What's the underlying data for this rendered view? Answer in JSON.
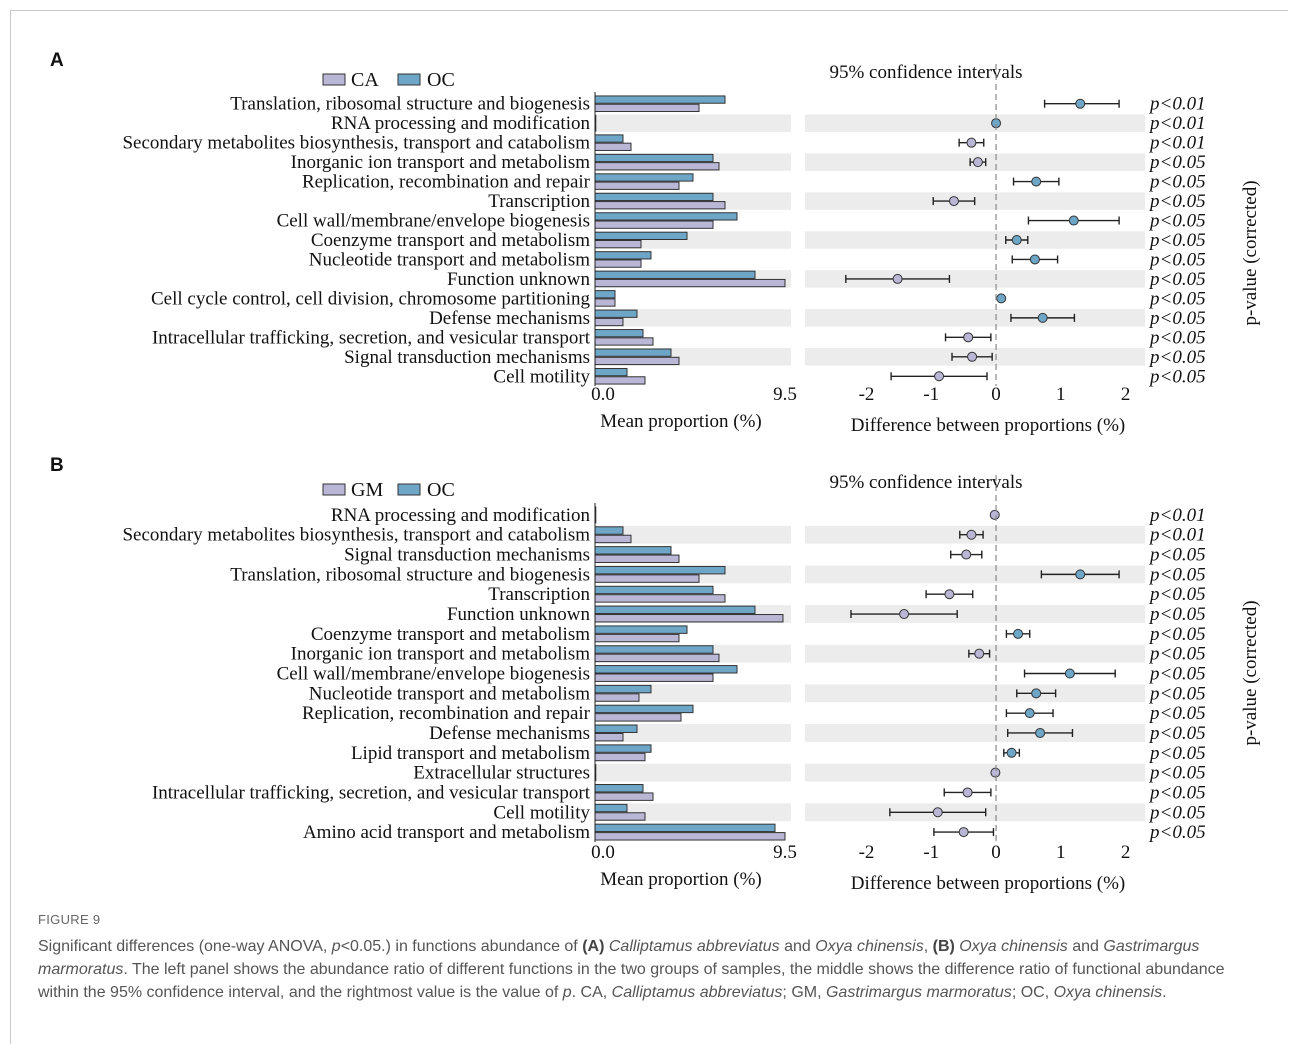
{
  "colors": {
    "series_1": "#b9b6d6",
    "series_2": "#6ea6c8",
    "stripe": "#ececec",
    "dot_positive": "#6ea6c8",
    "dot_negative": "#b9b6d6"
  },
  "chart_data": [
    {
      "panel_label": "A",
      "type": "bar",
      "legend": [
        "CA",
        "OC"
      ],
      "ci_title": "95% confidence intervals",
      "left_xlabel": "Mean proportion (%)",
      "left_xticks": [
        "0.0",
        "9.5"
      ],
      "left_xlim": [
        0,
        9.5
      ],
      "right_xlabel": "Difference between proportions (%)",
      "right_xticks": [
        "-2",
        "-1",
        "0",
        "1",
        "2"
      ],
      "right_xlim": [
        -2.95,
        2.3
      ],
      "pvalue_label": "p-value (corrected)",
      "categories": [
        "Translation, ribosomal structure and biogenesis",
        "RNA processing and modification",
        "Secondary metabolites biosynthesis, transport and catabolism",
        "Inorganic ion transport and metabolism",
        "Replication, recombination and repair",
        "Transcription",
        "Cell wall/membrane/envelope biogenesis",
        "Coenzyme transport and metabolism",
        "Nucleotide transport and metabolism",
        "Function unknown",
        "Cell cycle control, cell division, chromosome partitioning",
        "Defense mechanisms",
        "Intracellular trafficking, secretion, and vesicular transport",
        "Signal transduction mechanisms",
        "Cell motility"
      ],
      "series": [
        {
          "name": "CA",
          "values": [
            5.2,
            0.02,
            1.8,
            6.2,
            4.2,
            6.5,
            5.9,
            2.3,
            2.3,
            9.5,
            1.0,
            1.4,
            2.9,
            4.2,
            2.5
          ]
        },
        {
          "name": "OC",
          "values": [
            6.5,
            0.02,
            1.4,
            5.9,
            4.9,
            5.9,
            7.1,
            4.6,
            2.8,
            8.0,
            1.0,
            2.1,
            2.4,
            3.8,
            1.6
          ]
        }
      ],
      "differences": [
        1.3,
        0.0,
        -0.38,
        -0.28,
        0.62,
        -0.65,
        1.2,
        0.32,
        0.6,
        -1.52,
        0.08,
        0.72,
        -0.43,
        -0.37,
        -0.88
      ],
      "ci_low": [
        0.75,
        -0.03,
        -0.57,
        -0.4,
        0.27,
        -0.97,
        0.5,
        0.15,
        0.25,
        -2.32,
        0.05,
        0.23,
        -0.78,
        -0.68,
        -1.62
      ],
      "ci_high": [
        1.9,
        0.03,
        -0.19,
        -0.16,
        0.97,
        -0.33,
        1.9,
        0.49,
        0.95,
        -0.72,
        0.11,
        1.21,
        -0.08,
        -0.06,
        -0.14
      ],
      "p_values": [
        "p<0.01",
        "p<0.01",
        "p<0.01",
        "p<0.05",
        "p<0.05",
        "p<0.05",
        "p<0.05",
        "p<0.05",
        "p<0.05",
        "p<0.05",
        "p<0.05",
        "p<0.05",
        "p<0.05",
        "p<0.05",
        "p<0.05"
      ]
    },
    {
      "panel_label": "B",
      "type": "bar",
      "legend": [
        "GM",
        "OC"
      ],
      "ci_title": "95% confidence intervals",
      "left_xlabel": "Mean proportion (%)",
      "left_xticks": [
        "0.0",
        "9.5"
      ],
      "left_xlim": [
        0,
        9.5
      ],
      "right_xlabel": "Difference between proportions (%)",
      "right_xticks": [
        "-2",
        "-1",
        "0",
        "1",
        "2"
      ],
      "right_xlim": [
        -2.95,
        2.3
      ],
      "pvalue_label": "p-value (corrected)",
      "categories": [
        "RNA processing and modification",
        "Secondary metabolites biosynthesis, transport and catabolism",
        "Signal transduction mechanisms",
        "Translation, ribosomal structure and biogenesis",
        "Transcription",
        "Function unknown",
        "Coenzyme transport and metabolism",
        "Inorganic ion transport and metabolism",
        "Cell wall/membrane/envelope biogenesis",
        "Nucleotide transport and metabolism",
        "Replication, recombination and repair",
        "Defense mechanisms",
        "Lipid transport and metabolism",
        "Extracellular structures",
        "Intracellular trafficking, secretion, and vesicular transport",
        "Cell motility",
        "Amino acid transport and metabolism"
      ],
      "series": [
        {
          "name": "GM",
          "values": [
            0.02,
            1.8,
            4.2,
            5.2,
            6.5,
            9.4,
            4.2,
            6.2,
            5.9,
            2.2,
            4.3,
            1.4,
            2.5,
            0.02,
            2.9,
            2.5,
            9.5
          ]
        },
        {
          "name": "OC",
          "values": [
            0.02,
            1.4,
            3.8,
            6.5,
            5.9,
            8.0,
            4.6,
            5.9,
            7.1,
            2.8,
            4.9,
            2.1,
            2.8,
            0.02,
            2.4,
            1.6,
            9.0
          ]
        }
      ],
      "differences": [
        -0.02,
        -0.38,
        -0.46,
        1.3,
        -0.72,
        -1.42,
        0.34,
        -0.26,
        1.14,
        0.62,
        0.52,
        0.68,
        0.24,
        -0.01,
        -0.44,
        -0.9,
        -0.5
      ],
      "ci_low": [
        -0.04,
        -0.56,
        -0.7,
        0.7,
        -1.08,
        -2.24,
        0.16,
        -0.42,
        0.44,
        0.32,
        0.16,
        0.18,
        0.12,
        -0.03,
        -0.8,
        -1.64,
        -0.96
      ],
      "ci_high": [
        0.0,
        -0.2,
        -0.22,
        1.9,
        -0.36,
        -0.6,
        0.52,
        -0.1,
        1.84,
        0.92,
        0.88,
        1.18,
        0.36,
        0.01,
        -0.08,
        -0.16,
        -0.04
      ],
      "p_values": [
        "p<0.01",
        "p<0.01",
        "p<0.05",
        "p<0.05",
        "p<0.05",
        "p<0.05",
        "p<0.05",
        "p<0.05",
        "p<0.05",
        "p<0.05",
        "p<0.05",
        "p<0.05",
        "p<0.05",
        "p<0.05",
        "p<0.05",
        "p<0.05",
        "p<0.05"
      ]
    }
  ],
  "caption": {
    "figure_label": "FIGURE 9",
    "t1": "Significant differences (one-way ANOVA, ",
    "t1_italic": "p",
    "t2": "<0.05.) in functions abundance of ",
    "a_label": "(A)",
    "sp1": "Calliptamus abbreviatus",
    "and1": " and ",
    "sp2": "Oxya chinensis",
    "comma": ", ",
    "b_label": "(B)",
    "sp3": "Oxya chinensis",
    "and2": " and ",
    "sp4": "Gastrimargus marmoratus",
    "t3": ". The left panel shows the abundance ratio of different functions in the two groups of samples, the middle shows the difference ratio of functional abundance within the 95% confidence interval, and the rightmost value is the value of ",
    "t3_italic": "p",
    "t4": ". CA, ",
    "ca_name": "Calliptamus abbreviatus",
    "t5": "; GM, ",
    "gm_name": "Gastrimargus marmoratus",
    "t6": "; OC, ",
    "oc_name": "Oxya chinensis",
    "t7": "."
  }
}
